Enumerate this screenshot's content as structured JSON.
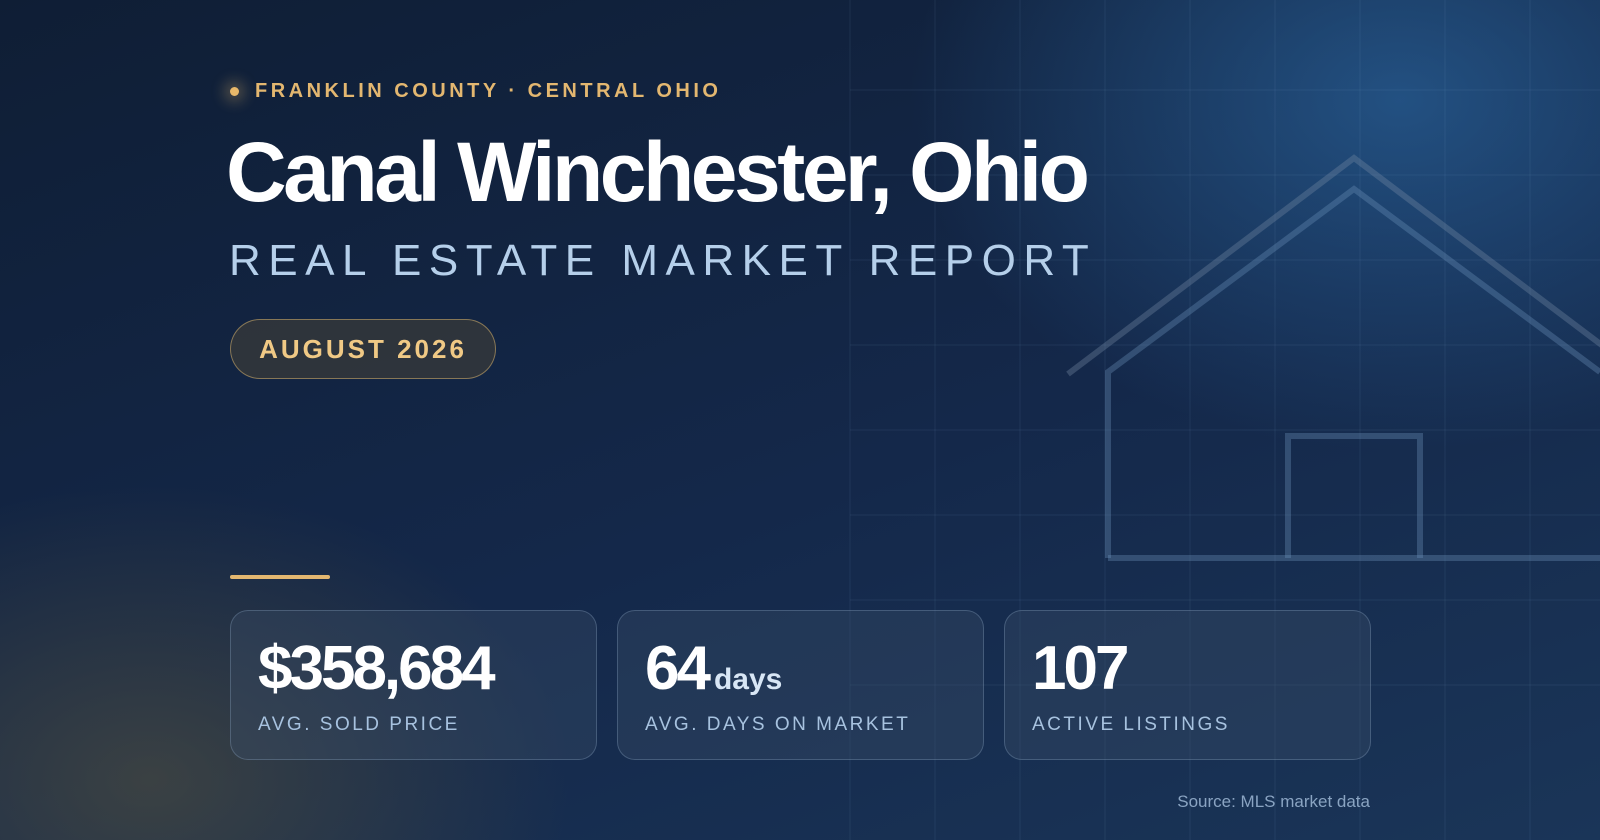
{
  "eyebrow": "FRANKLIN COUNTY · CENTRAL OHIO",
  "title": "Canal Winchester, Ohio",
  "subtitle": "REAL ESTATE MARKET REPORT",
  "badge": "AUGUST 2026",
  "stats": [
    {
      "value": "$358,684",
      "label": "AVG. SOLD PRICE"
    },
    {
      "value": "64",
      "unit": "days",
      "label": "AVG. DAYS ON MARKET"
    },
    {
      "value": "107",
      "label": "ACTIVE LISTINGS"
    }
  ],
  "source": "Source: MLS market data"
}
